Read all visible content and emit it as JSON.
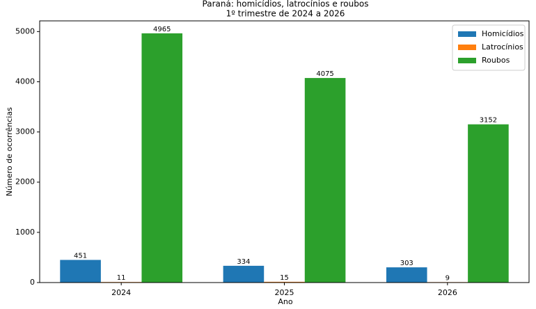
{
  "chart_data": {
    "type": "bar",
    "title": "Paraná: homicídios, latrocínios e roubos",
    "subtitle": "1º trimestre de 2024 a 2026",
    "x_label": "Ano",
    "y_label": "Número de ocorrências",
    "categories": [
      "2024",
      "2025",
      "2026"
    ],
    "series": [
      {
        "name": "Homicídios",
        "color": "#1f77b4",
        "values": [
          451,
          334,
          303
        ]
      },
      {
        "name": "Latrocínios",
        "color": "#ff7f0e",
        "values": [
          11,
          15,
          9
        ]
      },
      {
        "name": "Roubos",
        "color": "#2ca02c",
        "values": [
          4965,
          4075,
          3152
        ]
      }
    ],
    "ylim": [
      0,
      5213
    ],
    "yticks": [
      0,
      1000,
      2000,
      3000,
      4000,
      5000
    ],
    "legend": "upper right",
    "data_labels": true
  }
}
